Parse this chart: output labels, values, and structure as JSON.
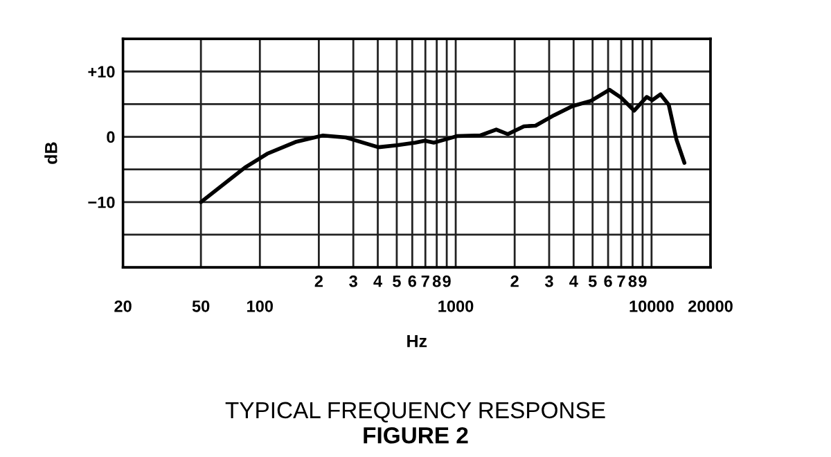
{
  "chart_data": {
    "type": "line",
    "title": "TYPICAL FREQUENCY RESPONSE",
    "subtitle": "FIGURE 2",
    "xlabel": "Hz",
    "ylabel": "dB",
    "log": "x",
    "grid": true,
    "marker": "none",
    "line_style": "solid",
    "xlim": [
      20,
      20000
    ],
    "ylim": [
      -20,
      15
    ],
    "xticks": [
      20,
      50,
      100,
      {
        "value": 200,
        "label": null
      },
      {
        "value": 300,
        "label": null
      },
      {
        "value": 400,
        "label": null
      },
      {
        "value": 500,
        "label": null
      },
      {
        "value": 600,
        "label": null
      },
      {
        "value": 700,
        "label": null
      },
      {
        "value": 800,
        "label": null
      },
      {
        "value": 900,
        "label": null
      },
      1000,
      {
        "value": 2000,
        "label": null
      },
      {
        "value": 3000,
        "label": null
      },
      {
        "value": 4000,
        "label": null
      },
      {
        "value": 5000,
        "label": null
      },
      {
        "value": 6000,
        "label": null
      },
      {
        "value": 7000,
        "label": null
      },
      {
        "value": 8000,
        "label": null
      },
      {
        "value": 9000,
        "label": null
      },
      10000,
      20000
    ],
    "annotations": [
      "2",
      "3",
      "4",
      "5",
      "6",
      "7",
      "8",
      "9",
      "2",
      "3",
      "4",
      "5",
      "6",
      "7",
      "8",
      "9"
    ],
    "yticks": [
      {
        "value": -20,
        "label": null
      },
      {
        "value": -15,
        "label": null
      },
      {
        "value": -10,
        "label": "−10"
      },
      {
        "value": -5,
        "label": null
      },
      0,
      {
        "value": 5,
        "label": null
      },
      {
        "value": 10,
        "label": "+10"
      },
      {
        "value": 15,
        "label": null
      }
    ],
    "series": [
      {
        "color": "#000000",
        "x": [
          50,
          84,
          109,
          152,
          210,
          275,
          403,
          501,
          622,
          695,
          773,
          794,
          1014,
          1333,
          1611,
          1845,
          2229,
          2557,
          3177,
          3947,
          4908,
          6095,
          6993,
          8148,
          9437,
          10070,
          11100,
          12240,
          13400,
          14720
        ],
        "values": [
          -10,
          -4.7,
          -2.6,
          -0.8,
          0.2,
          -0.1,
          -1.6,
          -1.3,
          -0.9,
          -0.6,
          -0.9,
          -0.8,
          0.1,
          0.2,
          1.1,
          0.4,
          1.6,
          1.7,
          3.3,
          4.7,
          5.5,
          7.2,
          6.0,
          4.0,
          6.1,
          5.6,
          6.5,
          4.9,
          -0.4,
          -4.0
        ]
      }
    ]
  }
}
